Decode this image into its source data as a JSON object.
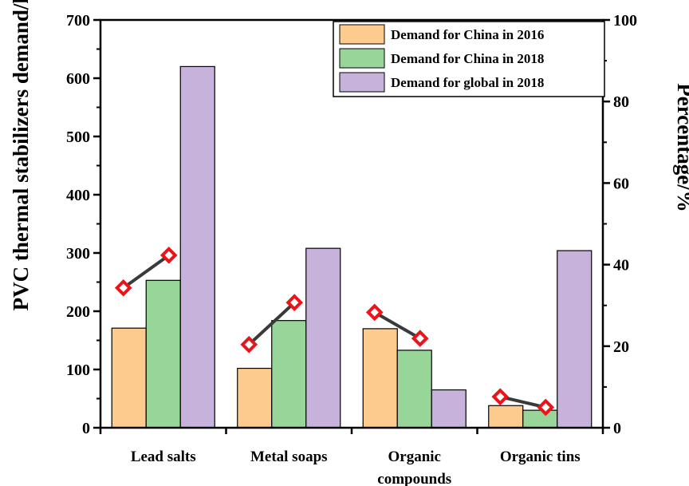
{
  "chart_data": {
    "type": "bar",
    "categories": [
      [
        "Lead salts"
      ],
      [
        "Metal soaps"
      ],
      [
        "Organic",
        "compounds"
      ],
      [
        "Organic tins"
      ]
    ],
    "series": [
      {
        "name": "Demand for China in 2016",
        "values": [
          171,
          102,
          170,
          38
        ],
        "color": "#FDCB8E"
      },
      {
        "name": "Demand for China in 2018",
        "values": [
          253,
          184,
          133,
          30
        ],
        "color": "#98D598"
      },
      {
        "name": "Demand for global in 2018",
        "values": [
          620,
          308,
          65,
          304
        ],
        "color": "#C6B2DA"
      }
    ],
    "percentage_series": {
      "points": [
        [
          34.3,
          42.3
        ],
        [
          20.4,
          30.7
        ],
        [
          28.3,
          21.9
        ],
        [
          7.6,
          5.0
        ]
      ],
      "marker_color": "#E8151B",
      "line_color": "#3a3a3a"
    },
    "ylabel": "PVC thermal stabilizers demand/kt",
    "ylim": [
      0,
      700
    ],
    "yticks": [
      "0",
      "100",
      "200",
      "300",
      "400",
      "500",
      "600",
      "700"
    ],
    "ylabel_right": "Percentage/%",
    "ylim_right": [
      0,
      100
    ],
    "yticks_right": [
      "0",
      "20",
      "40",
      "60",
      "80",
      "100"
    ],
    "legend_position": "top-right",
    "grid": false
  }
}
